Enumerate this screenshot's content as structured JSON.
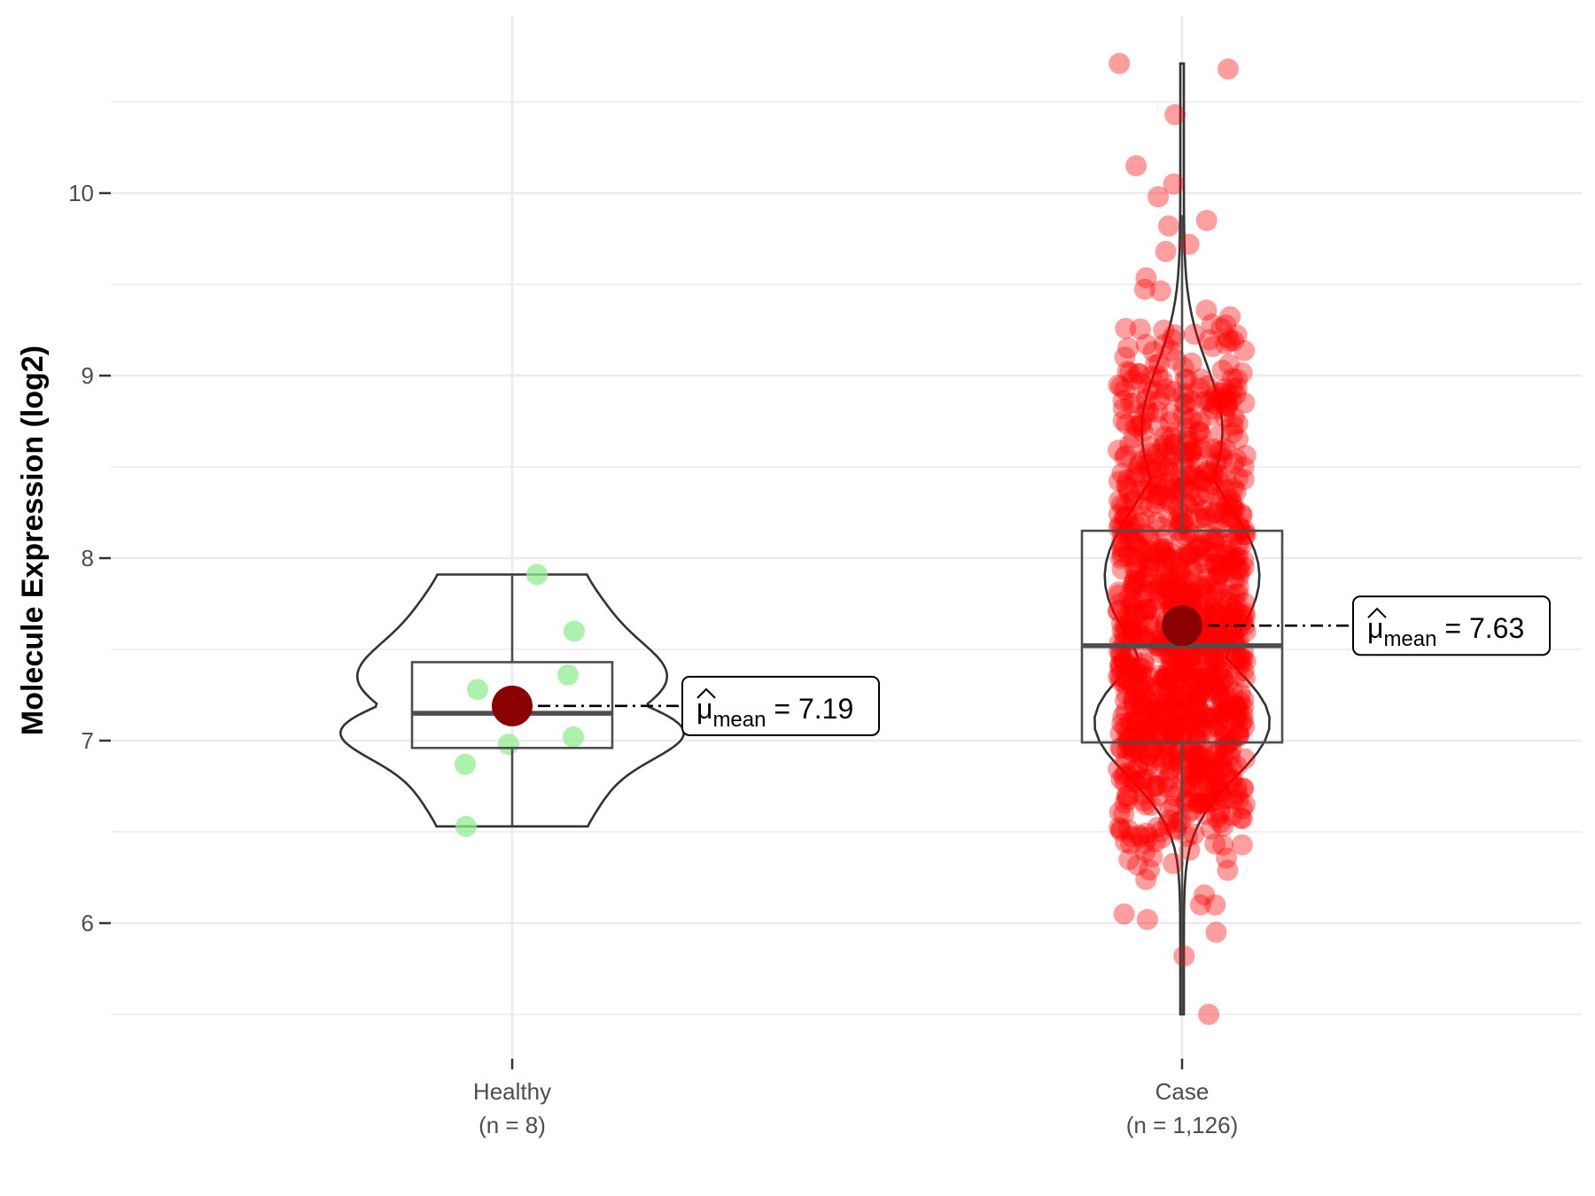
{
  "chart_data": {
    "type": "violin-box-scatter",
    "ylabel": "Molecule Expression (log2)",
    "ylim": [
      5.4,
      10.9
    ],
    "yticks": [
      6,
      7,
      8,
      9,
      10
    ],
    "grid": true,
    "groups": [
      {
        "name": "Healthy",
        "n_label": "(n = 8)",
        "point_color": "#90ee90",
        "points": [
          7.91,
          7.6,
          7.36,
          7.28,
          7.02,
          6.98,
          6.87,
          6.53
        ],
        "box": {
          "q1": 6.96,
          "median": 7.15,
          "q3": 7.43,
          "whisker_low": 6.53,
          "whisker_high": 7.91
        },
        "violin": {
          "min": 6.53,
          "max": 7.91
        },
        "mean": 7.19,
        "mean_label": "7.19"
      },
      {
        "name": "Case",
        "n_label": "(n = 1,126)",
        "point_color": "#ff0000",
        "points_summary": {
          "count": 1126,
          "min": 5.5,
          "max": 10.71
        },
        "box": {
          "q1": 6.99,
          "median": 7.52,
          "q3": 8.15,
          "whisker_low": 5.5,
          "whisker_high": 9.88
        },
        "violin": {
          "min": 5.5,
          "max": 10.71
        },
        "mean": 7.63,
        "mean_label": "7.63"
      }
    ],
    "mean_marker_color": "#8b0000",
    "mean_symbol": "μ",
    "mean_subscript": "mean"
  }
}
